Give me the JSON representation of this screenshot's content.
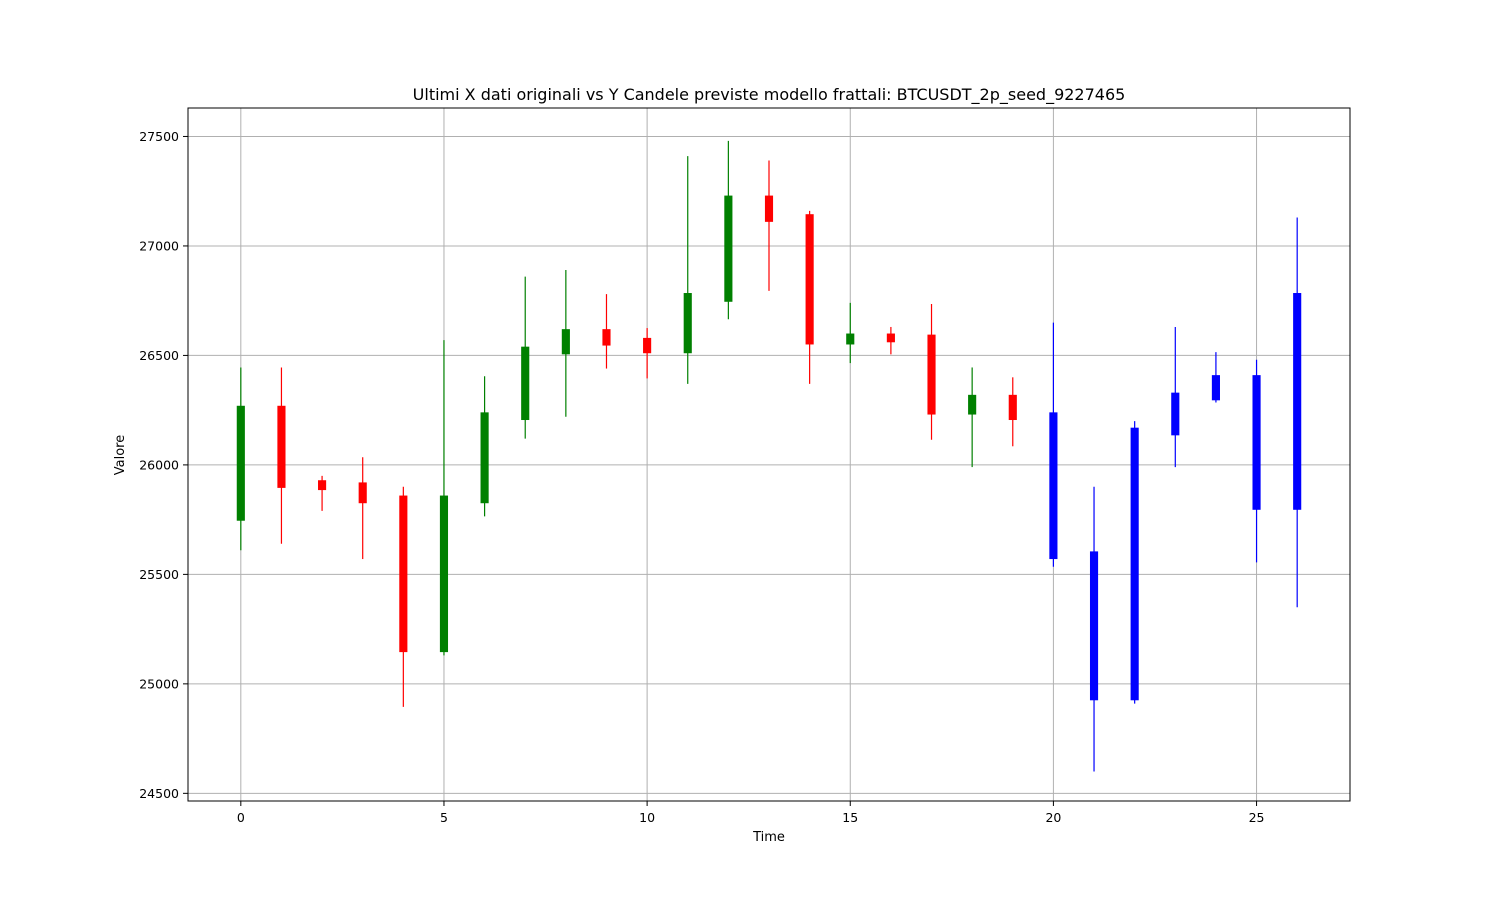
{
  "chart_data": {
    "type": "candlestick",
    "title": "Ultimi X dati originali vs Y Candele previste modello frattali: BTCUSDT_2p_seed_9227465",
    "xlabel": "Time",
    "ylabel": "Valore",
    "xlim": [
      -1.3,
      27.3
    ],
    "ylim": [
      24465,
      27630
    ],
    "x_ticks": [
      0,
      5,
      10,
      15,
      20,
      25
    ],
    "y_ticks": [
      24500,
      25000,
      25500,
      26000,
      26500,
      27000,
      27500
    ],
    "grid": true,
    "colors": {
      "up": "#008000",
      "down": "#ff0000",
      "forecast": "#0000ff"
    },
    "candles": [
      {
        "t": 0,
        "open": 25745,
        "high": 26445,
        "low": 25610,
        "close": 26270,
        "kind": "up"
      },
      {
        "t": 1,
        "open": 26270,
        "high": 26445,
        "low": 25640,
        "close": 25895,
        "kind": "down"
      },
      {
        "t": 2,
        "open": 25930,
        "high": 25950,
        "low": 25790,
        "close": 25885,
        "kind": "down"
      },
      {
        "t": 3,
        "open": 25920,
        "high": 26035,
        "low": 25570,
        "close": 25825,
        "kind": "down"
      },
      {
        "t": 4,
        "open": 25860,
        "high": 25900,
        "low": 24895,
        "close": 25145,
        "kind": "down"
      },
      {
        "t": 5,
        "open": 25145,
        "high": 26570,
        "low": 25130,
        "close": 25860,
        "kind": "up"
      },
      {
        "t": 6,
        "open": 25825,
        "high": 26405,
        "low": 25765,
        "close": 26240,
        "kind": "up"
      },
      {
        "t": 7,
        "open": 26205,
        "high": 26860,
        "low": 26120,
        "close": 26540,
        "kind": "up"
      },
      {
        "t": 8,
        "open": 26505,
        "high": 26890,
        "low": 26220,
        "close": 26620,
        "kind": "up"
      },
      {
        "t": 9,
        "open": 26620,
        "high": 26780,
        "low": 26440,
        "close": 26545,
        "kind": "down"
      },
      {
        "t": 10,
        "open": 26580,
        "high": 26625,
        "low": 26395,
        "close": 26510,
        "kind": "down"
      },
      {
        "t": 11,
        "open": 26510,
        "high": 27410,
        "low": 26370,
        "close": 26785,
        "kind": "up"
      },
      {
        "t": 12,
        "open": 26745,
        "high": 27480,
        "low": 26665,
        "close": 27230,
        "kind": "up"
      },
      {
        "t": 13,
        "open": 27230,
        "high": 27390,
        "low": 26795,
        "close": 27110,
        "kind": "down"
      },
      {
        "t": 14,
        "open": 27145,
        "high": 27160,
        "low": 26370,
        "close": 26550,
        "kind": "down"
      },
      {
        "t": 15,
        "open": 26550,
        "high": 26740,
        "low": 26465,
        "close": 26600,
        "kind": "up"
      },
      {
        "t": 16,
        "open": 26600,
        "high": 26630,
        "low": 26505,
        "close": 26560,
        "kind": "down"
      },
      {
        "t": 17,
        "open": 26595,
        "high": 26735,
        "low": 26115,
        "close": 26230,
        "kind": "down"
      },
      {
        "t": 18,
        "open": 26230,
        "high": 26445,
        "low": 25990,
        "close": 26320,
        "kind": "up"
      },
      {
        "t": 19,
        "open": 26320,
        "high": 26400,
        "low": 26085,
        "close": 26205,
        "kind": "down"
      },
      {
        "t": 20,
        "open": 26240,
        "high": 26650,
        "low": 25535,
        "close": 25570,
        "kind": "forecast"
      },
      {
        "t": 21,
        "open": 25605,
        "high": 25900,
        "low": 24600,
        "close": 24925,
        "kind": "forecast"
      },
      {
        "t": 22,
        "open": 24925,
        "high": 26200,
        "low": 24910,
        "close": 26170,
        "kind": "forecast"
      },
      {
        "t": 23,
        "open": 26135,
        "high": 26630,
        "low": 25990,
        "close": 26330,
        "kind": "forecast"
      },
      {
        "t": 24,
        "open": 26295,
        "high": 26515,
        "low": 26285,
        "close": 26410,
        "kind": "forecast"
      },
      {
        "t": 25,
        "open": 25795,
        "high": 26480,
        "low": 25555,
        "close": 26410,
        "kind": "forecast"
      },
      {
        "t": 26,
        "open": 25795,
        "high": 27130,
        "low": 25350,
        "close": 26785,
        "kind": "forecast"
      }
    ]
  }
}
